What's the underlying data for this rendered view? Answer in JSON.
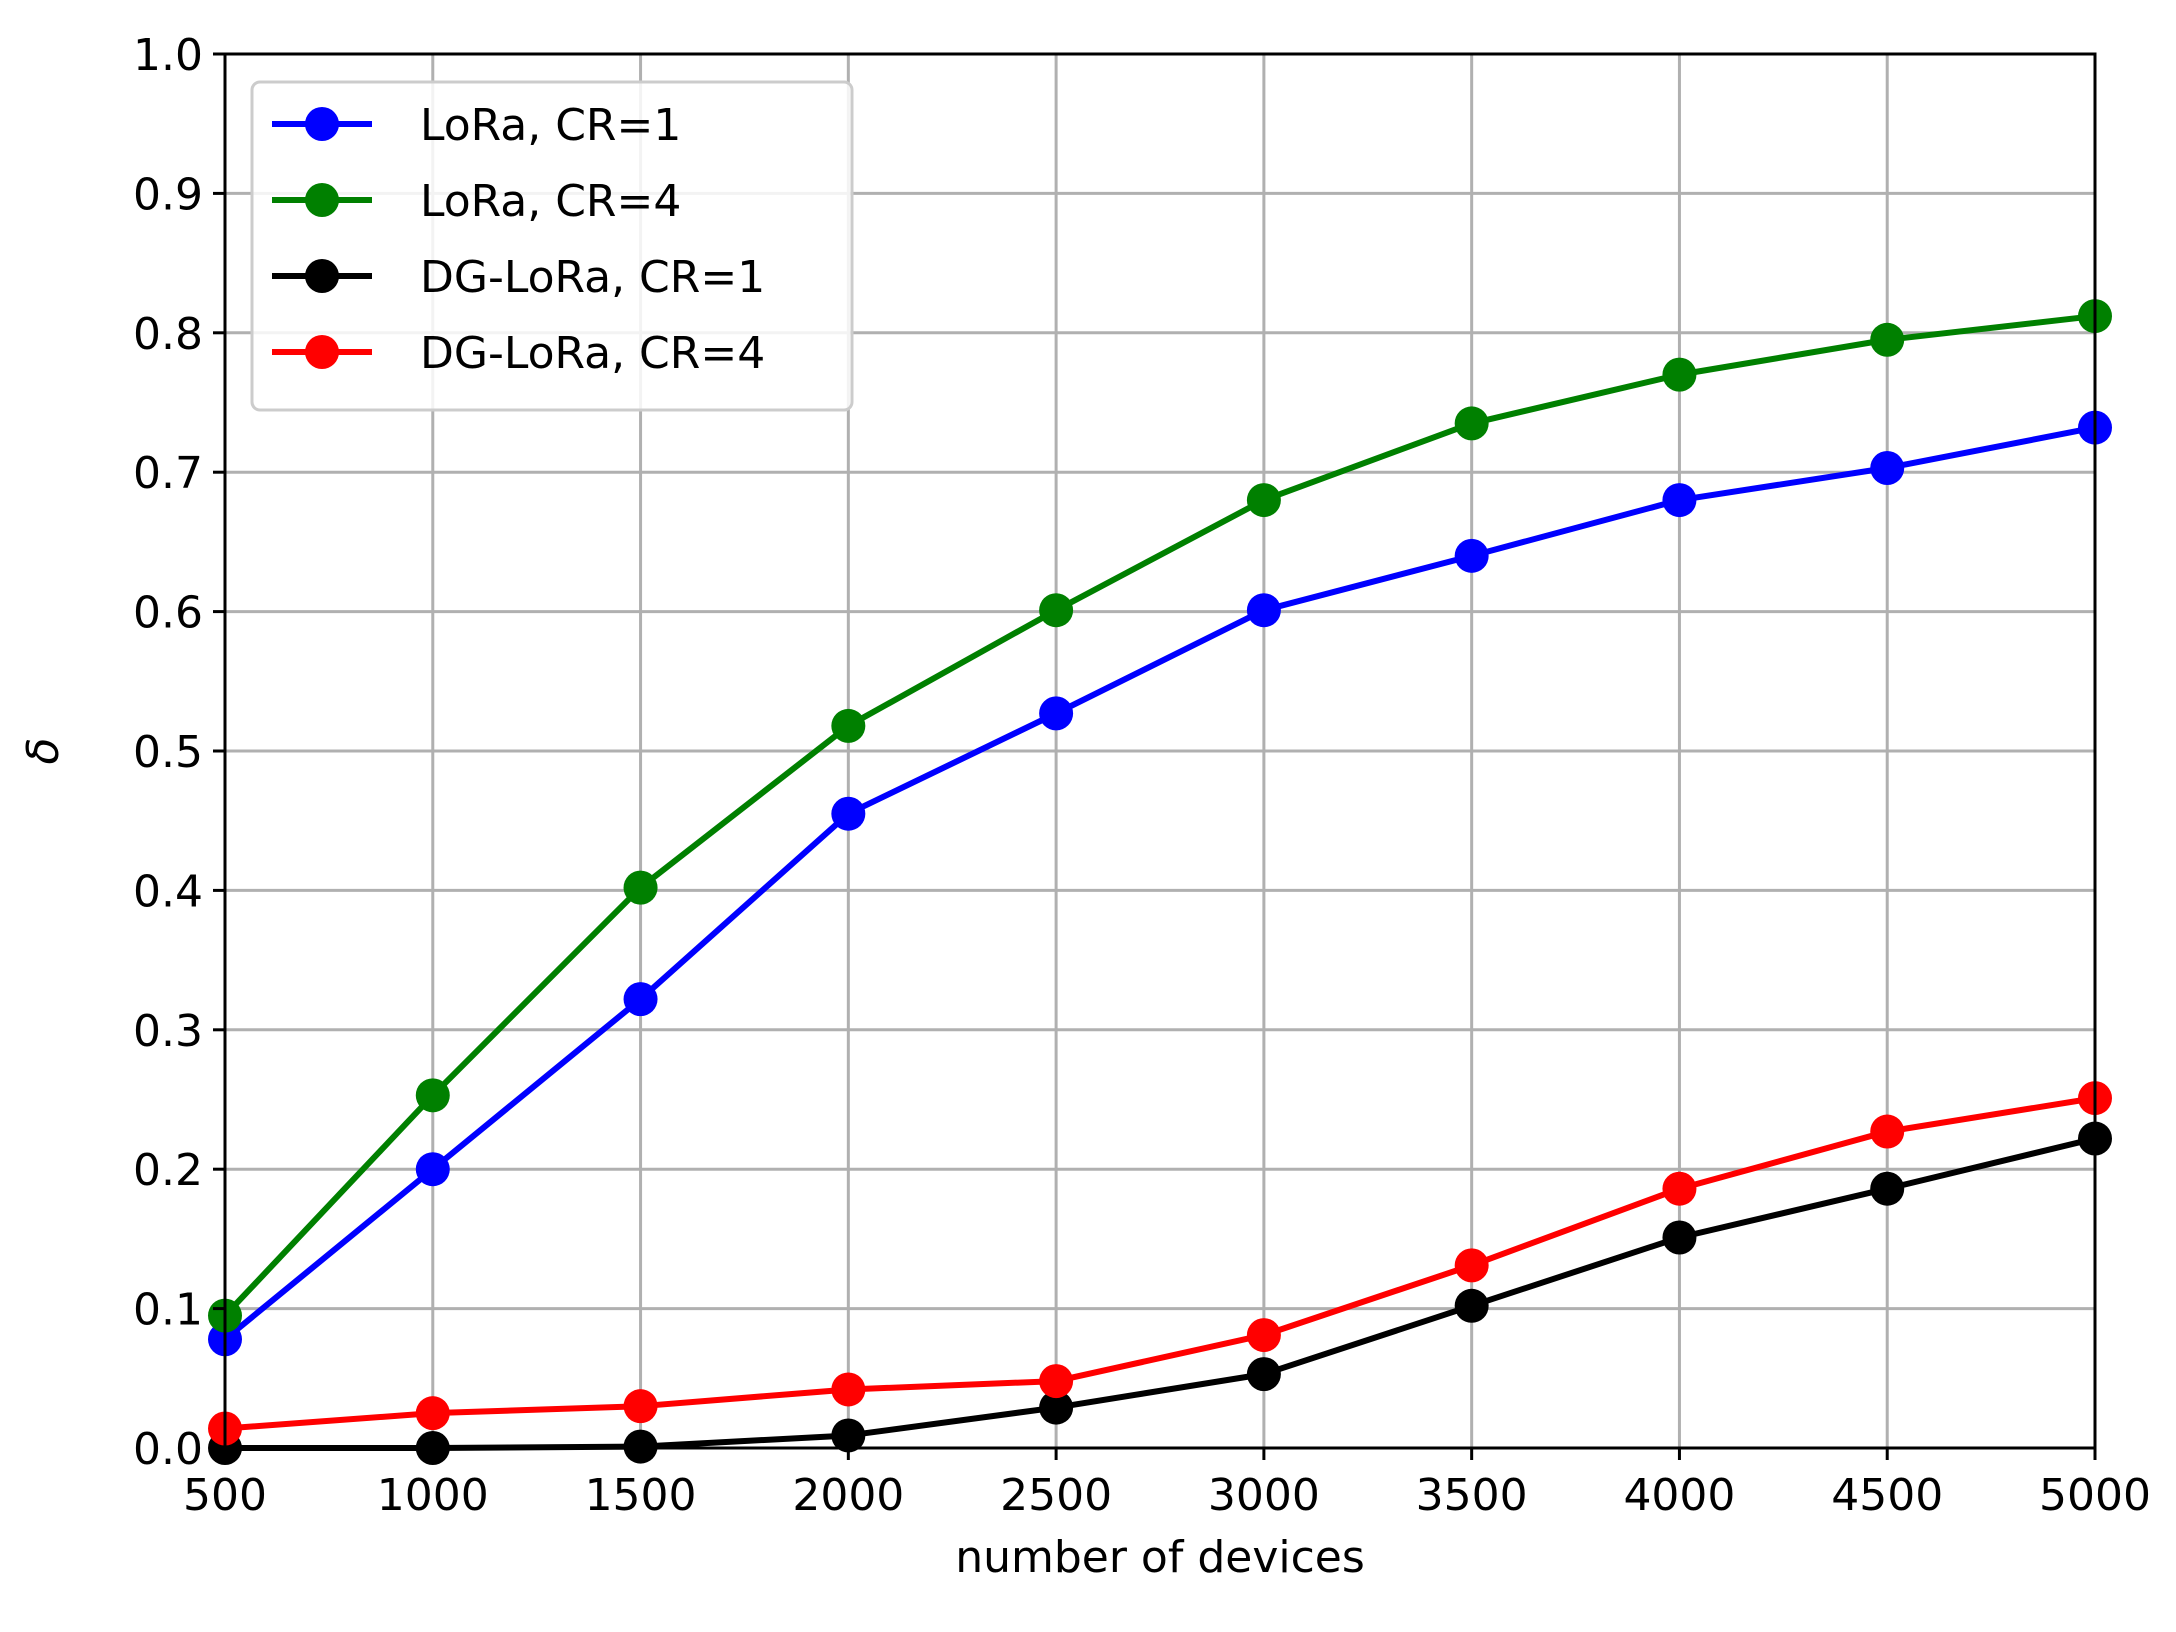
{
  "chart_data": {
    "type": "line",
    "title": "",
    "xlabel": "number of devices",
    "ylabel": "δ",
    "xlim": [
      500,
      5000
    ],
    "ylim": [
      0.0,
      1.0
    ],
    "x": [
      500,
      1000,
      1500,
      2000,
      2500,
      3000,
      3500,
      4000,
      4500,
      5000
    ],
    "x_ticks": [
      500,
      1000,
      1500,
      2000,
      2500,
      3000,
      3500,
      4000,
      4500,
      5000
    ],
    "x_tick_labels": [
      "500",
      "1000",
      "1500",
      "2000",
      "2500",
      "3000",
      "3500",
      "4000",
      "4500",
      "5000"
    ],
    "y_ticks": [
      0.0,
      0.1,
      0.2,
      0.3,
      0.4,
      0.5,
      0.6,
      0.7,
      0.8,
      0.9,
      1.0
    ],
    "y_tick_labels": [
      "0.0",
      "0.1",
      "0.2",
      "0.3",
      "0.4",
      "0.5",
      "0.6",
      "0.7",
      "0.8",
      "0.9",
      "1.0"
    ],
    "grid": true,
    "legend_position": "top-left",
    "series": [
      {
        "name": "LoRa, CR=1",
        "color": "#0000ff",
        "values": [
          0.078,
          0.2,
          0.322,
          0.455,
          0.527,
          0.601,
          0.64,
          0.68,
          0.703,
          0.732
        ]
      },
      {
        "name": "LoRa, CR=4",
        "color": "#008000",
        "values": [
          0.095,
          0.253,
          0.402,
          0.518,
          0.601,
          0.68,
          0.735,
          0.77,
          0.795,
          0.812
        ]
      },
      {
        "name": "DG-LoRa, CR=1",
        "color": "#000000",
        "values": [
          0.0,
          0.0,
          0.001,
          0.009,
          0.029,
          0.053,
          0.102,
          0.151,
          0.186,
          0.222
        ]
      },
      {
        "name": "DG-LoRa, CR=4",
        "color": "#ff0000",
        "values": [
          0.014,
          0.025,
          0.03,
          0.042,
          0.048,
          0.081,
          0.131,
          0.186,
          0.227,
          0.251
        ]
      }
    ]
  }
}
